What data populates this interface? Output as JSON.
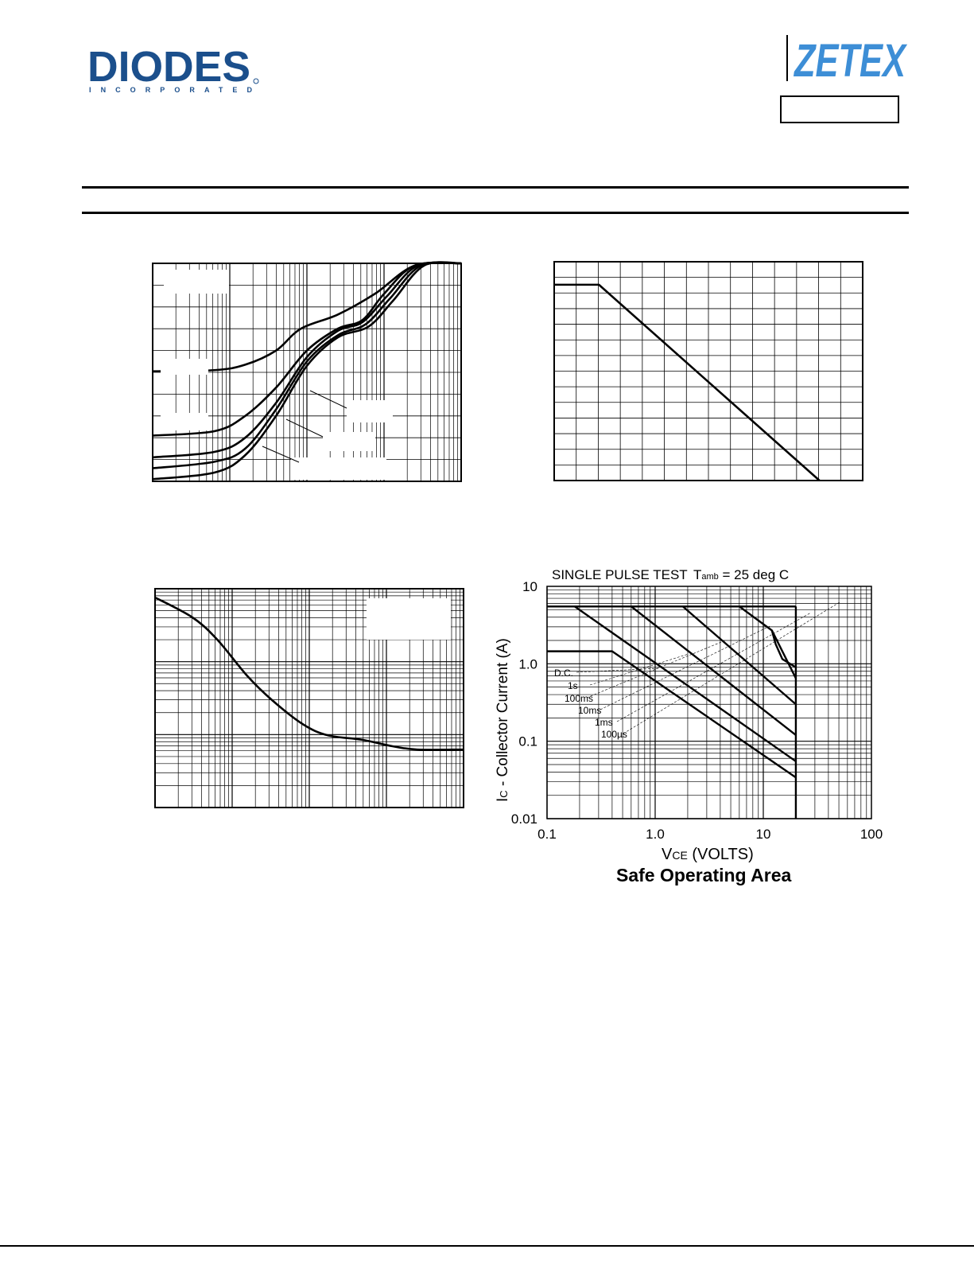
{
  "header": {
    "left_logo": {
      "text": "DIODES",
      "subtext": "INCORPORATED",
      "color": "#1b4f8c"
    },
    "right_logo": {
      "text": "ZETEX",
      "color": "#3d8ed6"
    }
  },
  "colors": {
    "line": "#000000",
    "grid": "#000000",
    "logo_blue": "#1b4f8c",
    "zetex_blue": "#3d8ed6"
  },
  "chart_data": [
    {
      "type": "line",
      "x_scale": "log",
      "y_scale": "linear",
      "xlim": [
        0,
        1
      ],
      "ylim": [
        0,
        1
      ],
      "grid": true,
      "x_decades": 4,
      "y_divisions": 10,
      "series": [
        {
          "values": [
            [
              0,
              0.505
            ],
            [
              0.2,
              0.51
            ],
            [
              0.3,
              0.535
            ],
            [
              0.4,
              0.6
            ],
            [
              0.48,
              0.7
            ],
            [
              0.6,
              0.765
            ],
            [
              0.72,
              0.86
            ],
            [
              0.85,
              0.99
            ],
            [
              1,
              1
            ]
          ]
        },
        {
          "values": [
            [
              0,
              0.21
            ],
            [
              0.2,
              0.23
            ],
            [
              0.3,
              0.3
            ],
            [
              0.4,
              0.43
            ],
            [
              0.5,
              0.6
            ],
            [
              0.6,
              0.7
            ],
            [
              0.68,
              0.74
            ],
            [
              0.75,
              0.86
            ],
            [
              0.85,
              0.99
            ],
            [
              1,
              1
            ]
          ]
        },
        {
          "values": [
            [
              0,
              0.11
            ],
            [
              0.2,
              0.135
            ],
            [
              0.3,
              0.2
            ],
            [
              0.4,
              0.36
            ],
            [
              0.5,
              0.57
            ],
            [
              0.6,
              0.69
            ],
            [
              0.68,
              0.73
            ],
            [
              0.76,
              0.85
            ],
            [
              0.86,
              0.99
            ],
            [
              1,
              1
            ]
          ]
        },
        {
          "values": [
            [
              0,
              0.06
            ],
            [
              0.2,
              0.09
            ],
            [
              0.3,
              0.15
            ],
            [
              0.4,
              0.33
            ],
            [
              0.5,
              0.55
            ],
            [
              0.6,
              0.67
            ],
            [
              0.69,
              0.72
            ],
            [
              0.77,
              0.84
            ],
            [
              0.87,
              0.99
            ],
            [
              1,
              1
            ]
          ]
        },
        {
          "values": [
            [
              0,
              0.01
            ],
            [
              0.2,
              0.04
            ],
            [
              0.3,
              0.12
            ],
            [
              0.4,
              0.3
            ],
            [
              0.5,
              0.53
            ],
            [
              0.6,
              0.66
            ],
            [
              0.7,
              0.71
            ],
            [
              0.78,
              0.83
            ],
            [
              0.88,
              0.99
            ],
            [
              1,
              1
            ]
          ]
        }
      ]
    },
    {
      "type": "line",
      "x_scale": "linear",
      "y_scale": "linear",
      "xlim": [
        0,
        1
      ],
      "ylim": [
        0,
        1
      ],
      "grid": true,
      "x_divisions": 14,
      "y_divisions": 14,
      "series": [
        {
          "values": [
            [
              0,
              0.895
            ],
            [
              0.145,
              0.895
            ],
            [
              0.86,
              0
            ]
          ]
        }
      ]
    },
    {
      "type": "line",
      "x_scale": "log",
      "y_scale": "log",
      "xlim": [
        0,
        1
      ],
      "ylim": [
        0,
        1
      ],
      "grid": true,
      "x_decades": 4,
      "y_decades": 3,
      "series": [
        {
          "values": [
            [
              0,
              0.96
            ],
            [
              0.12,
              0.87
            ],
            [
              0.2,
              0.77
            ],
            [
              0.3,
              0.6
            ],
            [
              0.38,
              0.49
            ],
            [
              0.48,
              0.38
            ],
            [
              0.56,
              0.33
            ],
            [
              0.67,
              0.31
            ],
            [
              0.77,
              0.28
            ],
            [
              0.85,
              0.265
            ],
            [
              1,
              0.265
            ]
          ]
        }
      ]
    },
    {
      "type": "line",
      "title": "SINGLE PULSE TEST",
      "annotation": {
        "prefix": "T",
        "sub": "amb",
        "suffix": " = 25 deg C"
      },
      "xlabel": {
        "main": "V",
        "sub": "CE",
        "suffix": " (VOLTS)"
      },
      "ylabel": {
        "main": "I",
        "sub": "C",
        "suffix": " - Collector Current (A)"
      },
      "caption": "Safe Operating Area",
      "x_scale": "log",
      "y_scale": "log",
      "xlim": [
        0.1,
        100
      ],
      "ylim": [
        0.01,
        10
      ],
      "x_ticks": [
        0.1,
        1.0,
        10,
        100
      ],
      "x_tick_labels": [
        "0.1",
        "1.0",
        "10",
        "100"
      ],
      "y_ticks": [
        0.01,
        0.1,
        1.0,
        10
      ],
      "y_tick_labels": [
        "0.01",
        "0.1",
        "1.0",
        "10"
      ],
      "grid": true,
      "vce_max": 20,
      "series": [
        {
          "name": "D.C.",
          "values": [
            [
              0.1,
              1.45
            ],
            [
              0.4,
              1.45
            ],
            [
              20,
              0.034
            ]
          ]
        },
        {
          "name": "1s",
          "values": [
            [
              0.18,
              5.5
            ],
            [
              20,
              0.055
            ]
          ]
        },
        {
          "name": "100ms",
          "values": [
            [
              0.6,
              5.5
            ],
            [
              20,
              0.12
            ]
          ]
        },
        {
          "name": "10ms",
          "values": [
            [
              1.8,
              5.5
            ],
            [
              20,
              0.3
            ]
          ]
        },
        {
          "name": "1ms",
          "values": [
            [
              6,
              5.5
            ],
            [
              12,
              2.7
            ],
            [
              20,
              0.65
            ]
          ]
        },
        {
          "name": "100µs",
          "values": [
            [
              12,
              2.7
            ],
            [
              13,
              1.8
            ],
            [
              15,
              1.15
            ],
            [
              20,
              0.9
            ]
          ]
        }
      ],
      "ic_max": 5.5,
      "labels": [
        "D.C.",
        "1s",
        "100ms",
        "10ms",
        "1ms",
        "100µs"
      ]
    }
  ]
}
